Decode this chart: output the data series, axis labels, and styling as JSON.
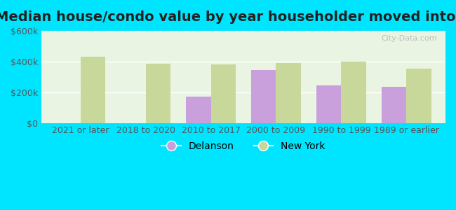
{
  "title": "Median house/condo value by year householder moved into unit",
  "categories": [
    "2021 or later",
    "2018 to 2020",
    "2010 to 2017",
    "2000 to 2009",
    "1990 to 1999",
    "1989 or earlier"
  ],
  "delanson": [
    null,
    null,
    170000,
    345000,
    245000,
    235000
  ],
  "new_york": [
    430000,
    385000,
    380000,
    390000,
    400000,
    355000
  ],
  "delanson_color": "#c9a0dc",
  "new_york_color": "#c8d89a",
  "background_outer": "#00e5ff",
  "ylim": [
    0,
    600000
  ],
  "yticks": [
    0,
    200000,
    400000,
    600000
  ],
  "ytick_labels": [
    "$0",
    "$200k",
    "$400k",
    "$600k"
  ],
  "bar_width": 0.38,
  "legend_delanson": "Delanson",
  "legend_new_york": "New York",
  "watermark": "City-Data.com",
  "title_fontsize": 14,
  "tick_fontsize": 9,
  "legend_fontsize": 10
}
